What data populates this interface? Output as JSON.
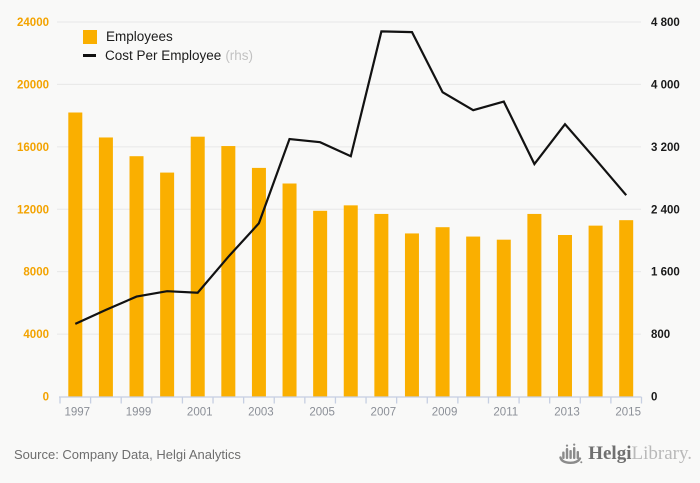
{
  "colors": {
    "background": "#f9f9f8",
    "bar": "#faaf00",
    "line": "#121212",
    "grid": "#e8e8e7",
    "axis": "#c6cfe2",
    "left_tick_text": "#f3a300",
    "right_tick_text": "#1a1a1a",
    "year_text": "#8b8f97"
  },
  "legend": {
    "items": [
      {
        "label": "Employees",
        "suffix": ""
      },
      {
        "label": "Cost Per Employee",
        "suffix": "(rhs)"
      }
    ]
  },
  "chart_data": {
    "type": "combo-bar-line",
    "categories": [
      1997,
      1998,
      1999,
      2000,
      2001,
      2002,
      2003,
      2004,
      2005,
      2006,
      2007,
      2008,
      2009,
      2010,
      2011,
      2012,
      2013,
      2014,
      2015
    ],
    "x_labeled_every": 2,
    "series": [
      {
        "name": "Employees",
        "type": "bar",
        "axis": "left",
        "color": "#faaf00",
        "values": [
          18200,
          16600,
          15400,
          14350,
          16650,
          16050,
          14650,
          13650,
          11900,
          12250,
          11700,
          10450,
          10850,
          10250,
          10050,
          11700,
          10350,
          10950,
          11300
        ]
      },
      {
        "name": "Cost Per Employee (rhs)",
        "type": "line",
        "axis": "right",
        "color": "#121212",
        "values": [
          930,
          1110,
          1280,
          1350,
          1330,
          1790,
          2220,
          3300,
          3260,
          3080,
          4680,
          4670,
          3900,
          3670,
          3780,
          2980,
          3490,
          3040,
          2580
        ]
      }
    ],
    "left_axis": {
      "min": 0,
      "max": 24000,
      "tick_step": 4000,
      "tick_labels": [
        "0",
        "4000",
        "8000",
        "12000",
        "16000",
        "20000",
        "24000"
      ]
    },
    "right_axis": {
      "min": 0,
      "max": 4800,
      "tick_step": 800,
      "tick_labels": [
        "0",
        "800",
        "1 600",
        "2 400",
        "3 200",
        "4 000",
        "4 800"
      ]
    },
    "grid": "horizontal",
    "legend_position": "top-left",
    "title": ""
  },
  "footer": {
    "source": "Source: Company Data, Helgi Analytics"
  },
  "logo": {
    "text": "Helgi",
    "suffix": "Library."
  }
}
